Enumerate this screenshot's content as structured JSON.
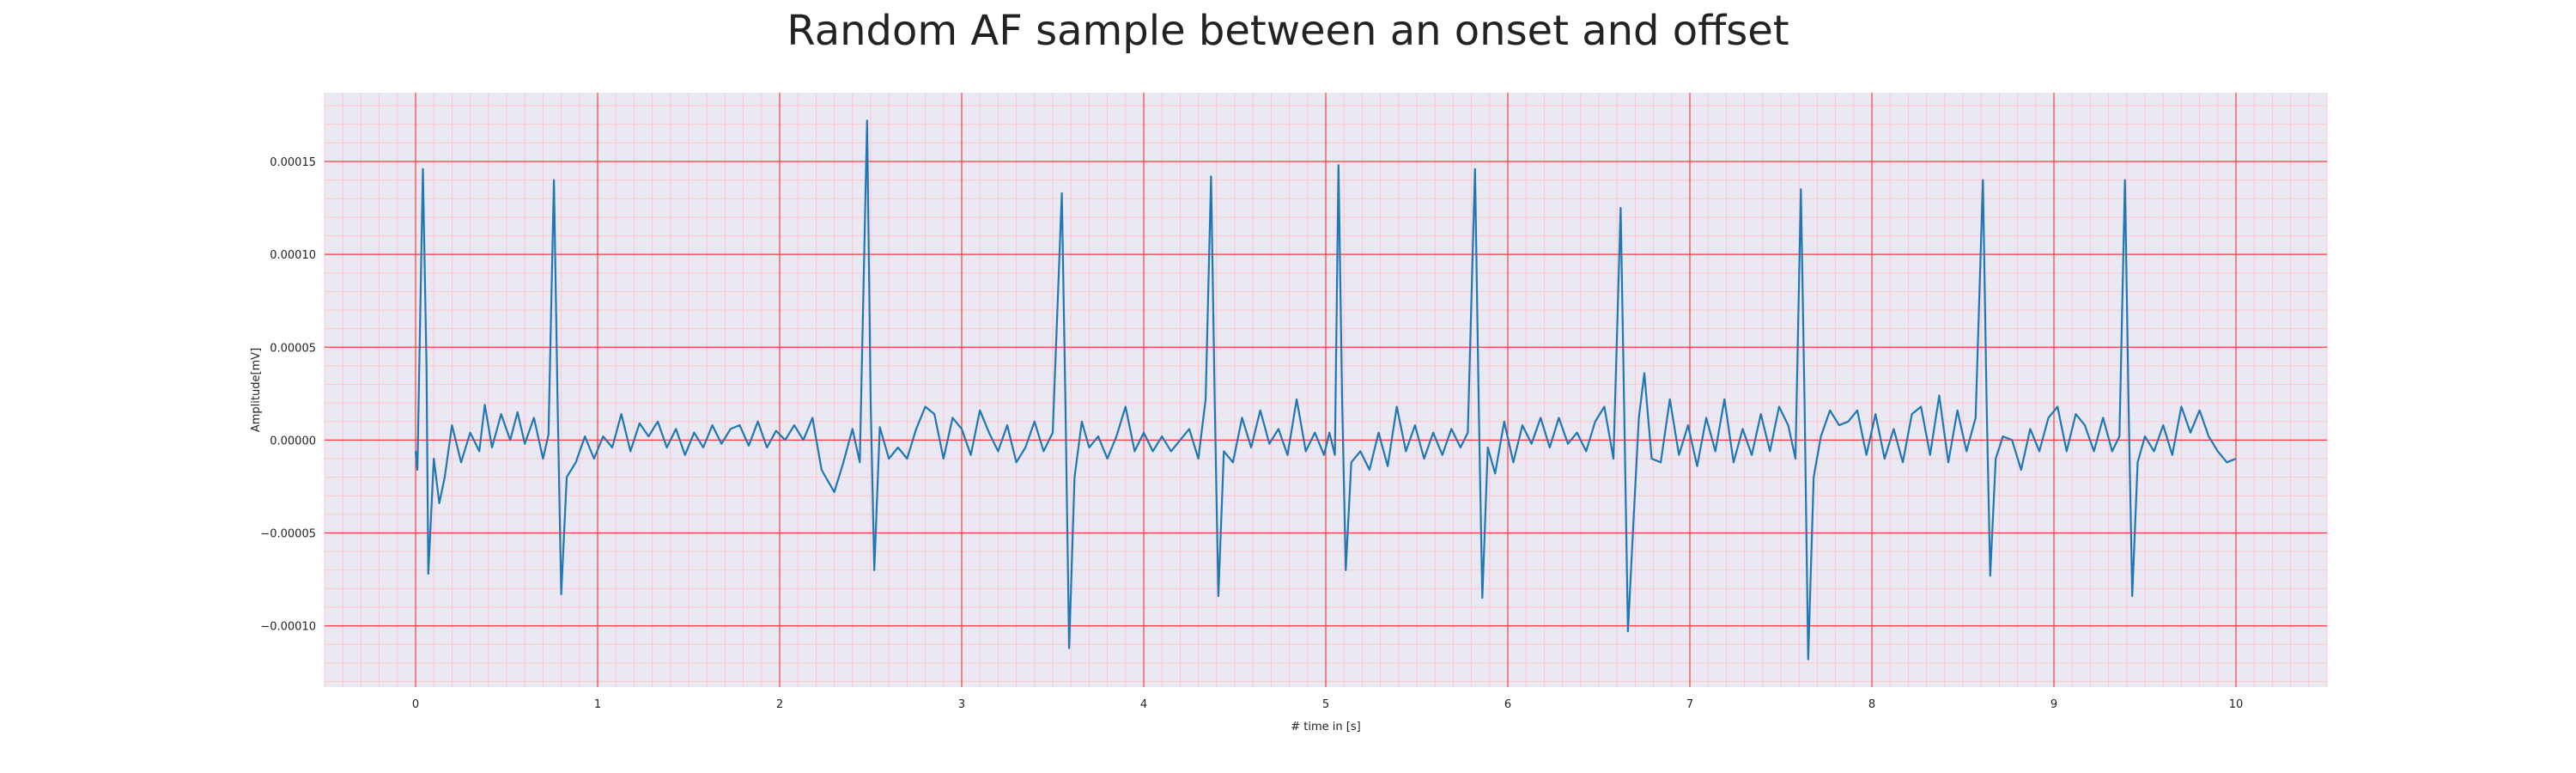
{
  "chart_data": {
    "type": "line",
    "title": "Random AF sample between an onset and offset",
    "xlabel": "# time in [s]",
    "ylabel": "Amplitude[mV]",
    "xlim": [
      -0.5,
      10.5
    ],
    "ylim": [
      -0.000133,
      0.000187
    ],
    "x_ticks": [
      0,
      1,
      2,
      3,
      4,
      5,
      6,
      7,
      8,
      9,
      10
    ],
    "x_tick_labels": [
      "0",
      "1",
      "2",
      "3",
      "4",
      "5",
      "6",
      "7",
      "8",
      "9",
      "10"
    ],
    "y_ticks": [
      -0.0001,
      -5e-05,
      0,
      5e-05,
      0.0001,
      0.00015
    ],
    "y_tick_labels": [
      "−0.00010",
      "−0.00005",
      "0.00000",
      "0.00005",
      "0.00010",
      "0.00015"
    ],
    "grid": true,
    "minor_grid": true,
    "colors": {
      "line": "#1f77b4",
      "plot_background": "#eae8f2",
      "major_grid": "#ff3b3b",
      "minor_grid": "#ffc6cc"
    },
    "series": [
      {
        "points": [
          [
            0.0,
            -6e-06
          ],
          [
            0.01,
            -1.6e-05
          ],
          [
            0.04,
            0.000146
          ],
          [
            0.06,
            4e-05
          ],
          [
            0.07,
            -7.2e-05
          ],
          [
            0.1,
            -1e-05
          ],
          [
            0.13,
            -3.4e-05
          ],
          [
            0.16,
            -2e-05
          ],
          [
            0.2,
            8e-06
          ],
          [
            0.25,
            -1.2e-05
          ],
          [
            0.3,
            4e-06
          ],
          [
            0.35,
            -6e-06
          ],
          [
            0.38,
            1.9e-05
          ],
          [
            0.42,
            -4e-06
          ],
          [
            0.47,
            1.4e-05
          ],
          [
            0.52,
            0.0
          ],
          [
            0.56,
            1.5e-05
          ],
          [
            0.6,
            -2e-06
          ],
          [
            0.65,
            1.2e-05
          ],
          [
            0.7,
            -1e-05
          ],
          [
            0.73,
            3e-06
          ],
          [
            0.76,
            0.00014
          ],
          [
            0.78,
            2e-05
          ],
          [
            0.8,
            -8.3e-05
          ],
          [
            0.83,
            -2e-05
          ],
          [
            0.88,
            -1.2e-05
          ],
          [
            0.93,
            2e-06
          ],
          [
            0.98,
            -1e-05
          ],
          [
            1.03,
            2e-06
          ],
          [
            1.08,
            -4e-06
          ],
          [
            1.13,
            1.4e-05
          ],
          [
            1.18,
            -6e-06
          ],
          [
            1.23,
            9e-06
          ],
          [
            1.28,
            2e-06
          ],
          [
            1.33,
            1e-05
          ],
          [
            1.38,
            -4e-06
          ],
          [
            1.43,
            6e-06
          ],
          [
            1.48,
            -8e-06
          ],
          [
            1.53,
            4e-06
          ],
          [
            1.58,
            -4e-06
          ],
          [
            1.63,
            8e-06
          ],
          [
            1.68,
            -2e-06
          ],
          [
            1.73,
            6e-06
          ],
          [
            1.78,
            8e-06
          ],
          [
            1.83,
            -3e-06
          ],
          [
            1.88,
            1e-05
          ],
          [
            1.93,
            -4e-06
          ],
          [
            1.98,
            5e-06
          ],
          [
            2.03,
            0.0
          ],
          [
            2.08,
            8e-06
          ],
          [
            2.13,
            0.0
          ],
          [
            2.18,
            1.2e-05
          ],
          [
            2.23,
            -1.6e-05
          ],
          [
            2.3,
            -2.8e-05
          ],
          [
            2.35,
            -1.2e-05
          ],
          [
            2.4,
            6e-06
          ],
          [
            2.44,
            -1.2e-05
          ],
          [
            2.48,
            0.000172
          ],
          [
            2.5,
            2e-05
          ],
          [
            2.52,
            -7e-05
          ],
          [
            2.55,
            7e-06
          ],
          [
            2.6,
            -1e-05
          ],
          [
            2.65,
            -4e-06
          ],
          [
            2.7,
            -1e-05
          ],
          [
            2.75,
            6e-06
          ],
          [
            2.8,
            1.8e-05
          ],
          [
            2.85,
            1.4e-05
          ],
          [
            2.9,
            -1e-05
          ],
          [
            2.95,
            1.2e-05
          ],
          [
            3.0,
            6e-06
          ],
          [
            3.05,
            -8e-06
          ],
          [
            3.1,
            1.6e-05
          ],
          [
            3.15,
            4e-06
          ],
          [
            3.2,
            -6e-06
          ],
          [
            3.25,
            8e-06
          ],
          [
            3.3,
            -1.2e-05
          ],
          [
            3.35,
            -4e-06
          ],
          [
            3.4,
            1e-05
          ],
          [
            3.45,
            -6e-06
          ],
          [
            3.5,
            4e-06
          ],
          [
            3.55,
            0.000133
          ],
          [
            3.57,
            2e-05
          ],
          [
            3.59,
            -0.000112
          ],
          [
            3.62,
            -2e-05
          ],
          [
            3.66,
            1e-05
          ],
          [
            3.7,
            -4e-06
          ],
          [
            3.75,
            2e-06
          ],
          [
            3.8,
            -1e-05
          ],
          [
            3.85,
            2e-06
          ],
          [
            3.9,
            1.8e-05
          ],
          [
            3.95,
            -6e-06
          ],
          [
            4.0,
            4e-06
          ],
          [
            4.05,
            -6e-06
          ],
          [
            4.1,
            2e-06
          ],
          [
            4.15,
            -6e-06
          ],
          [
            4.2,
            0.0
          ],
          [
            4.25,
            6e-06
          ],
          [
            4.3,
            -1e-05
          ],
          [
            4.34,
            2.2e-05
          ],
          [
            4.37,
            0.000142
          ],
          [
            4.39,
            2e-05
          ],
          [
            4.41,
            -8.4e-05
          ],
          [
            4.44,
            -6e-06
          ],
          [
            4.49,
            -1.2e-05
          ],
          [
            4.54,
            1.2e-05
          ],
          [
            4.59,
            -4e-06
          ],
          [
            4.64,
            1.6e-05
          ],
          [
            4.69,
            -2e-06
          ],
          [
            4.74,
            6e-06
          ],
          [
            4.79,
            -8e-06
          ],
          [
            4.84,
            2.2e-05
          ],
          [
            4.89,
            -6e-06
          ],
          [
            4.94,
            4e-06
          ],
          [
            4.99,
            -8e-06
          ],
          [
            5.02,
            4e-06
          ],
          [
            5.05,
            -8e-06
          ],
          [
            5.07,
            0.000148
          ],
          [
            5.09,
            2e-05
          ],
          [
            5.11,
            -7e-05
          ],
          [
            5.14,
            -1.2e-05
          ],
          [
            5.19,
            -6e-06
          ],
          [
            5.24,
            -1.6e-05
          ],
          [
            5.29,
            4e-06
          ],
          [
            5.34,
            -1.4e-05
          ],
          [
            5.39,
            1.8e-05
          ],
          [
            5.44,
            -6e-06
          ],
          [
            5.49,
            8e-06
          ],
          [
            5.54,
            -1e-05
          ],
          [
            5.59,
            4e-06
          ],
          [
            5.64,
            -8e-06
          ],
          [
            5.69,
            6e-06
          ],
          [
            5.74,
            -4e-06
          ],
          [
            5.78,
            4e-06
          ],
          [
            5.82,
            0.000146
          ],
          [
            5.84,
            2e-05
          ],
          [
            5.86,
            -8.5e-05
          ],
          [
            5.89,
            -4e-06
          ],
          [
            5.93,
            -1.8e-05
          ],
          [
            5.98,
            1e-05
          ],
          [
            6.03,
            -1.2e-05
          ],
          [
            6.08,
            8e-06
          ],
          [
            6.13,
            -2e-06
          ],
          [
            6.18,
            1.2e-05
          ],
          [
            6.23,
            -4e-06
          ],
          [
            6.28,
            1.2e-05
          ],
          [
            6.33,
            -2e-06
          ],
          [
            6.38,
            4e-06
          ],
          [
            6.43,
            -6e-06
          ],
          [
            6.48,
            1e-05
          ],
          [
            6.53,
            1.8e-05
          ],
          [
            6.58,
            -1e-05
          ],
          [
            6.62,
            0.000125
          ],
          [
            6.64,
            1.2e-05
          ],
          [
            6.66,
            -0.000103
          ],
          [
            6.69,
            -4.4e-05
          ],
          [
            6.72,
            1.2e-05
          ],
          [
            6.75,
            3.6e-05
          ],
          [
            6.79,
            -1e-05
          ],
          [
            6.84,
            -1.2e-05
          ],
          [
            6.89,
            2.2e-05
          ],
          [
            6.94,
            -8e-06
          ],
          [
            6.99,
            8e-06
          ],
          [
            7.04,
            -1.4e-05
          ],
          [
            7.09,
            1.2e-05
          ],
          [
            7.14,
            -6e-06
          ],
          [
            7.19,
            2.2e-05
          ],
          [
            7.24,
            -1.2e-05
          ],
          [
            7.29,
            6e-06
          ],
          [
            7.34,
            -8e-06
          ],
          [
            7.39,
            1.4e-05
          ],
          [
            7.44,
            -6e-06
          ],
          [
            7.49,
            1.8e-05
          ],
          [
            7.54,
            8e-06
          ],
          [
            7.58,
            -1e-05
          ],
          [
            7.61,
            0.000135
          ],
          [
            7.63,
            2e-05
          ],
          [
            7.65,
            -0.000118
          ],
          [
            7.68,
            -2e-05
          ],
          [
            7.72,
            2e-06
          ],
          [
            7.77,
            1.6e-05
          ],
          [
            7.82,
            8e-06
          ],
          [
            7.87,
            1e-05
          ],
          [
            7.92,
            1.6e-05
          ],
          [
            7.97,
            -8e-06
          ],
          [
            8.02,
            1.4e-05
          ],
          [
            8.07,
            -1e-05
          ],
          [
            8.12,
            6e-06
          ],
          [
            8.17,
            -1.2e-05
          ],
          [
            8.22,
            1.4e-05
          ],
          [
            8.27,
            1.8e-05
          ],
          [
            8.32,
            -8e-06
          ],
          [
            8.37,
            2.4e-05
          ],
          [
            8.42,
            -1.2e-05
          ],
          [
            8.47,
            1.6e-05
          ],
          [
            8.52,
            -6e-06
          ],
          [
            8.57,
            1.2e-05
          ],
          [
            8.61,
            0.00014
          ],
          [
            8.63,
            2e-05
          ],
          [
            8.65,
            -7.3e-05
          ],
          [
            8.68,
            -1e-05
          ],
          [
            8.72,
            2e-06
          ],
          [
            8.77,
            0.0
          ],
          [
            8.82,
            -1.6e-05
          ],
          [
            8.87,
            6e-06
          ],
          [
            8.92,
            -6e-06
          ],
          [
            8.97,
            1.2e-05
          ],
          [
            9.02,
            1.8e-05
          ],
          [
            9.07,
            -6e-06
          ],
          [
            9.12,
            1.4e-05
          ],
          [
            9.17,
            8e-06
          ],
          [
            9.22,
            -6e-06
          ],
          [
            9.27,
            1.2e-05
          ],
          [
            9.32,
            -6e-06
          ],
          [
            9.36,
            2e-06
          ],
          [
            9.39,
            0.00014
          ],
          [
            9.41,
            2e-05
          ],
          [
            9.43,
            -8.4e-05
          ],
          [
            9.46,
            -1.2e-05
          ],
          [
            9.5,
            2e-06
          ],
          [
            9.55,
            -6e-06
          ],
          [
            9.6,
            8e-06
          ],
          [
            9.65,
            -8e-06
          ],
          [
            9.7,
            1.8e-05
          ],
          [
            9.75,
            4e-06
          ],
          [
            9.8,
            1.6e-05
          ],
          [
            9.85,
            2e-06
          ],
          [
            9.9,
            -6e-06
          ],
          [
            9.95,
            -1.2e-05
          ],
          [
            10.0,
            -1e-05
          ]
        ]
      }
    ]
  }
}
